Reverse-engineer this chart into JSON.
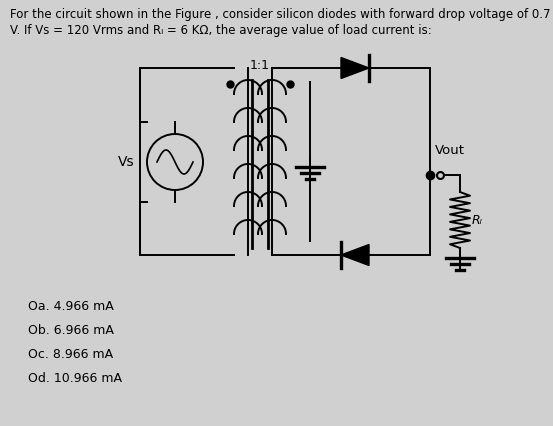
{
  "background_color": "#d0d0d0",
  "title_text_line1": "For the circuit shown in the Figure , consider silicon diodes with forward drop voltage of 0.7",
  "title_text_line2": "V. If Vs = 120 Vrms and Rₗ = 6 KΩ, the average value of load current is:",
  "title_fontsize": 8.5,
  "ratio_label": "1:1",
  "vs_label": "Vs",
  "vout_label": "Vout",
  "rl_label": "Rₗ",
  "options": [
    "Oa. 4.966 mA",
    "Ob. 6.966 mA",
    "Oc. 8.966 mA",
    "Od. 10.966 mA"
  ],
  "options_fontsize": 9.0,
  "circuit_color": "#000000",
  "lw": 1.4
}
